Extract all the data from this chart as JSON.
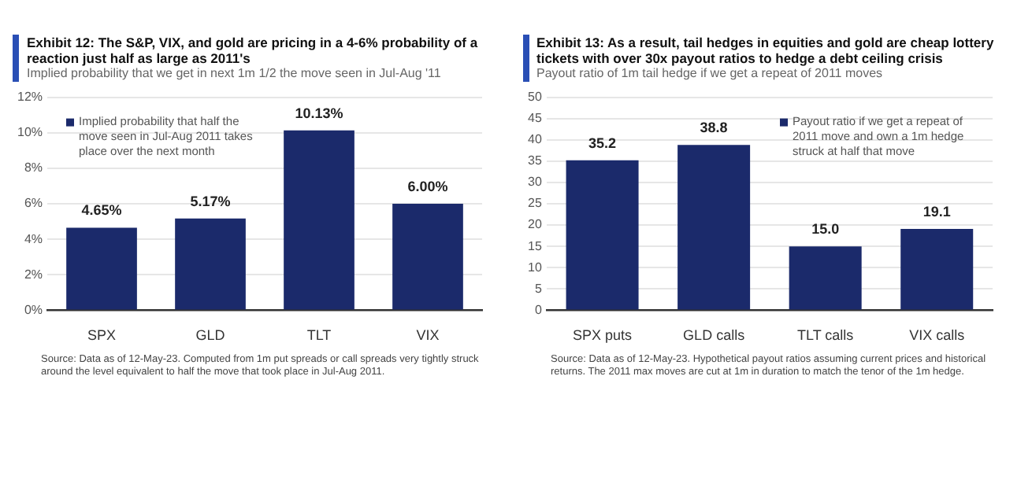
{
  "chart_data": [
    {
      "type": "bar",
      "title": "Exhibit 12: The S&P, VIX, and gold are pricing in a 4-6% probability of a reaction just half as large as 2011's",
      "subtitle": "Implied probability that we get in next 1m 1/2 the move seen in Jul-Aug '11",
      "categories": [
        "SPX",
        "GLD",
        "TLT",
        "VIX"
      ],
      "series": [
        {
          "name": "Implied probability that half the move seen in Jul-Aug 2011 takes place over the next month",
          "color": "#1b2a6b",
          "values": [
            4.65,
            5.17,
            10.13,
            6.0
          ],
          "value_labels": [
            "4.65%",
            "5.17%",
            "10.13%",
            "6.00%"
          ]
        }
      ],
      "ylim": [
        0,
        12
      ],
      "yticks": [
        {
          "value": 0,
          "label": "0%"
        },
        {
          "value": 2,
          "label": "2%"
        },
        {
          "value": 4,
          "label": "4%"
        },
        {
          "value": 6,
          "label": "6%"
        },
        {
          "value": 8,
          "label": "8%"
        },
        {
          "value": 10,
          "label": "10%"
        },
        {
          "value": 12,
          "label": "12%"
        }
      ],
      "grid": "y",
      "legend": "top left",
      "annotations": [
        "Source: Data as of 12-May-23. Computed from 1m put spreads or call spreads very tightly struck around the level equivalent to half the move that took place in Jul-Aug 2011."
      ]
    },
    {
      "type": "bar",
      "title": "Exhibit 13: As a result, tail hedges in equities and gold are cheap lottery tickets with over 30x payout ratios to hedge a debt ceiling crisis",
      "subtitle": "Payout ratio of 1m tail hedge if we get a repeat of 2011 moves",
      "categories": [
        "SPX puts",
        "GLD calls",
        "TLT calls",
        "VIX calls"
      ],
      "series": [
        {
          "name": "Payout ratio if we get a repeat of 2011 move and own a 1m hedge struck at half that move",
          "color": "#1b2a6b",
          "values": [
            35.2,
            38.8,
            15.0,
            19.1
          ],
          "value_labels": [
            "35.2",
            "38.8",
            "15.0",
            "19.1"
          ]
        }
      ],
      "ylim": [
        0,
        50
      ],
      "yticks": [
        0,
        5,
        10,
        15,
        20,
        25,
        30,
        35,
        40,
        45,
        50
      ],
      "grid": "y",
      "legend": "top right",
      "annotations": [
        "Source: Data as of 12-May-23. Hypothetical payout ratios assuming current prices and historical returns. The 2011 max moves are cut at 1m in duration to match the tenor of the 1m hedge."
      ]
    }
  ]
}
